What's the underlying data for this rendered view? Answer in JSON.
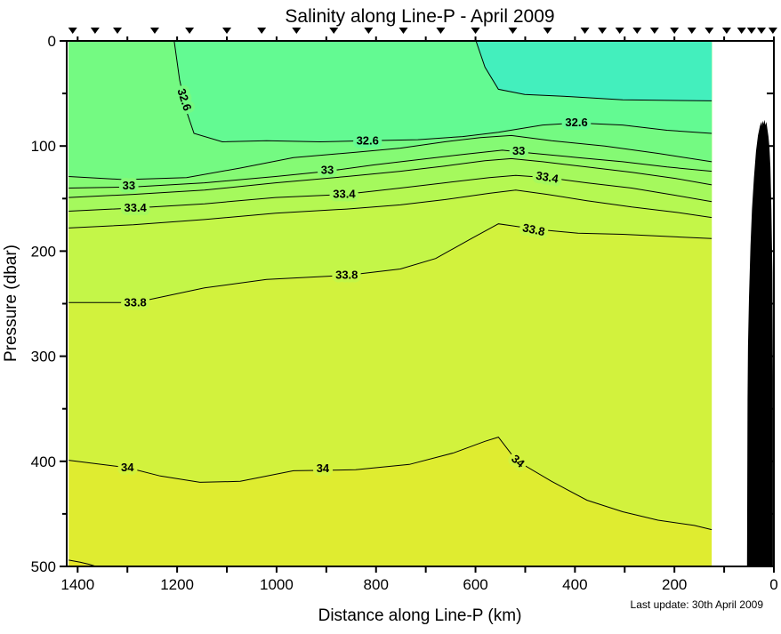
{
  "chart_data": {
    "type": "heatmap",
    "subtype": "filled-contour-section",
    "title": "Salinity along Line-P - April 2009",
    "xlabel": "Distance along Line-P (km)",
    "ylabel": "Pressure (dbar)",
    "note": "Last update: 30th April 2009",
    "x_range": [
      1422,
      0
    ],
    "y_range": [
      0,
      500
    ],
    "x_axis_reversed": true,
    "y_axis_down": true,
    "x_major_ticks": [
      1400,
      1200,
      1000,
      800,
      600,
      400,
      200,
      0
    ],
    "x_major_tick_labels": [
      "1400",
      "1200",
      "1000",
      "800",
      "600",
      "400",
      "200",
      "0"
    ],
    "x_minor_ticks": [
      1300,
      1100,
      900,
      700,
      500,
      300,
      100
    ],
    "y_major_ticks": [
      0,
      100,
      200,
      300,
      400,
      500
    ],
    "y_major_tick_labels": [
      "0",
      "100",
      "200",
      "300",
      "400",
      "500"
    ],
    "y_minor_ticks": [
      50,
      150,
      250,
      350,
      450
    ],
    "right_axis_ticks_dbar": [
      50,
      100,
      150,
      200,
      250,
      300,
      350,
      400,
      450
    ],
    "data_extent_km": [
      1418,
      125
    ],
    "contour_interval": 0.2,
    "labeled_levels": [
      32.6,
      33,
      33.4,
      33.8,
      34
    ],
    "station_markers_km": [
      1410,
      1365,
      1320,
      1245,
      1175,
      1100,
      1030,
      960,
      885,
      815,
      745,
      670,
      600,
      525,
      455,
      380,
      345,
      310,
      275,
      240,
      200,
      165,
      130,
      95,
      65,
      45,
      25,
      2
    ],
    "band_colors": [
      {
        "range": "<32.4",
        "color": "#43EFBD"
      },
      {
        "range": "32.4-32.6",
        "color": "#63FA92"
      },
      {
        "range": "32.6-32.8",
        "color": "#74FA82"
      },
      {
        "range": "32.8-33.0",
        "color": "#85FA74"
      },
      {
        "range": "33.0-33.2",
        "color": "#95FA68"
      },
      {
        "range": "33.2-33.4",
        "color": "#A5F95D"
      },
      {
        "range": "33.4-33.6",
        "color": "#B5F852"
      },
      {
        "range": "33.6-33.8",
        "color": "#C4F648"
      },
      {
        "range": "33.8-34.0",
        "color": "#D2F23D"
      },
      {
        "range": "34.0-34.2",
        "color": "#DFEC30"
      },
      {
        "range": ">34.2",
        "color": "#E7E628"
      }
    ],
    "contours": [
      {
        "level": 32.4,
        "points": [
          [
            599,
            0
          ],
          [
            581,
            25
          ],
          [
            554,
            46
          ],
          [
            501,
            51
          ],
          [
            411,
            53
          ],
          [
            304,
            56
          ],
          [
            125,
            57
          ]
        ]
      },
      {
        "level": 32.6,
        "points": [
          [
            1206,
            0
          ],
          [
            1195,
            37
          ],
          [
            1181,
            67
          ],
          [
            1166,
            88
          ],
          [
            1109,
            96
          ],
          [
            1020,
            95
          ],
          [
            912,
            96
          ],
          [
            817,
            95
          ],
          [
            716,
            94
          ],
          [
            626,
            91
          ],
          [
            554,
            87
          ],
          [
            465,
            80
          ],
          [
            397,
            78
          ],
          [
            304,
            80
          ],
          [
            215,
            85
          ],
          [
            125,
            88
          ]
        ]
      },
      {
        "level": 32.8,
        "points": [
          [
            1418,
            129
          ],
          [
            1306,
            132
          ],
          [
            1181,
            130
          ],
          [
            1073,
            121
          ],
          [
            966,
            111
          ],
          [
            841,
            106
          ],
          [
            751,
            102
          ],
          [
            662,
            96
          ],
          [
            590,
            92
          ],
          [
            528,
            90
          ],
          [
            447,
            95
          ],
          [
            340,
            100
          ],
          [
            233,
            107
          ],
          [
            125,
            115
          ]
        ]
      },
      {
        "level": 33.0,
        "points": [
          [
            1418,
            140
          ],
          [
            1288,
            139
          ],
          [
            1145,
            135
          ],
          [
            1002,
            129
          ],
          [
            898,
            124
          ],
          [
            805,
            118
          ],
          [
            716,
            113
          ],
          [
            626,
            108
          ],
          [
            546,
            104
          ],
          [
            483,
            107
          ],
          [
            394,
            111
          ],
          [
            304,
            115
          ],
          [
            215,
            120
          ],
          [
            125,
            124
          ]
        ]
      },
      {
        "level": 33.2,
        "points": [
          [
            1418,
            149
          ],
          [
            1288,
            146
          ],
          [
            1145,
            142
          ],
          [
            1002,
            135
          ],
          [
            859,
            129
          ],
          [
            751,
            124
          ],
          [
            662,
            119
          ],
          [
            581,
            114
          ],
          [
            528,
            112
          ],
          [
            465,
            115
          ],
          [
            376,
            120
          ],
          [
            286,
            125
          ],
          [
            197,
            131
          ],
          [
            125,
            137
          ]
        ]
      },
      {
        "level": 33.4,
        "points": [
          [
            1418,
            162
          ],
          [
            1284,
            159
          ],
          [
            1145,
            155
          ],
          [
            1002,
            149
          ],
          [
            864,
            146
          ],
          [
            751,
            140
          ],
          [
            662,
            135
          ],
          [
            572,
            130
          ],
          [
            519,
            128
          ],
          [
            456,
            130
          ],
          [
            376,
            135
          ],
          [
            286,
            140
          ],
          [
            197,
            147
          ],
          [
            125,
            153
          ]
        ]
      },
      {
        "level": 33.6,
        "points": [
          [
            1418,
            178
          ],
          [
            1288,
            175
          ],
          [
            1145,
            170
          ],
          [
            1002,
            164
          ],
          [
            859,
            160
          ],
          [
            751,
            156
          ],
          [
            662,
            151
          ],
          [
            572,
            145
          ],
          [
            519,
            142
          ],
          [
            456,
            146
          ],
          [
            376,
            152
          ],
          [
            286,
            158
          ],
          [
            197,
            163
          ],
          [
            125,
            168
          ]
        ]
      },
      {
        "level": 33.8,
        "points": [
          [
            1418,
            249
          ],
          [
            1284,
            249
          ],
          [
            1145,
            235
          ],
          [
            1020,
            227
          ],
          [
            859,
            223
          ],
          [
            751,
            217
          ],
          [
            680,
            207
          ],
          [
            608,
            188
          ],
          [
            554,
            174
          ],
          [
            510,
            177
          ],
          [
            483,
            179
          ],
          [
            394,
            183
          ],
          [
            304,
            184
          ],
          [
            215,
            186
          ],
          [
            125,
            188
          ]
        ]
      },
      {
        "level": 34.0,
        "points": [
          [
            1418,
            399
          ],
          [
            1300,
            406
          ],
          [
            1234,
            414
          ],
          [
            1154,
            420
          ],
          [
            1073,
            419
          ],
          [
            966,
            409
          ],
          [
            841,
            408
          ],
          [
            733,
            403
          ],
          [
            644,
            392
          ],
          [
            581,
            381
          ],
          [
            554,
            377
          ],
          [
            528,
            393
          ],
          [
            501,
            404
          ],
          [
            447,
            419
          ],
          [
            376,
            437
          ],
          [
            304,
            448
          ],
          [
            233,
            456
          ],
          [
            160,
            461
          ],
          [
            125,
            465
          ]
        ]
      },
      {
        "level": 34.2,
        "fragment": true,
        "points": [
          [
            1418,
            494
          ],
          [
            1395,
            496
          ],
          [
            1377,
            498
          ],
          [
            1363,
            500
          ]
        ]
      }
    ],
    "contour_labels": [
      {
        "text": "32.6",
        "km": 1186,
        "dbar": 56,
        "rot": 72,
        "halo": "#74FA82"
      },
      {
        "text": "32.6",
        "km": 817,
        "dbar": 95,
        "rot": 0,
        "halo": "#63FA92"
      },
      {
        "text": "32.6",
        "km": 397,
        "dbar": 78,
        "rot": 0,
        "halo": "#63FA92"
      },
      {
        "text": "33",
        "km": 1297,
        "dbar": 138,
        "rot": 0,
        "halo": "#85FA74"
      },
      {
        "text": "33",
        "km": 898,
        "dbar": 123,
        "rot": 0,
        "halo": "#85FA74"
      },
      {
        "text": "33",
        "km": 513,
        "dbar": 105,
        "rot": 0,
        "halo": "#85FA74"
      },
      {
        "text": "33.4",
        "km": 1284,
        "dbar": 159,
        "rot": 0,
        "halo": "#A5F95D"
      },
      {
        "text": "33.4",
        "km": 864,
        "dbar": 146,
        "rot": 0,
        "halo": "#A5F95D"
      },
      {
        "text": "33.4",
        "km": 456,
        "dbar": 130,
        "rot": 10,
        "halo": "#A5F95D"
      },
      {
        "text": "33.8",
        "km": 1284,
        "dbar": 249,
        "rot": 0,
        "halo": "#C4F648"
      },
      {
        "text": "33.8",
        "km": 859,
        "dbar": 223,
        "rot": 0,
        "halo": "#C4F648"
      },
      {
        "text": "33.8",
        "km": 483,
        "dbar": 180,
        "rot": 12,
        "halo": "#C4F648"
      },
      {
        "text": "34",
        "km": 1300,
        "dbar": 406,
        "rot": 0,
        "halo": "#D2F23D"
      },
      {
        "text": "34",
        "km": 907,
        "dbar": 407,
        "rot": 0,
        "halo": "#D2F23D"
      },
      {
        "text": "34",
        "km": 515,
        "dbar": 400,
        "rot": 40,
        "halo": "#D2F23D"
      }
    ],
    "bathymetry_km_dbar": [
      [
        54,
        500
      ],
      [
        53,
        340
      ],
      [
        52,
        290
      ],
      [
        50,
        245
      ],
      [
        47,
        195
      ],
      [
        44,
        160
      ],
      [
        40,
        130
      ],
      [
        36,
        105
      ],
      [
        32,
        90
      ],
      [
        28,
        81
      ],
      [
        25,
        77
      ],
      [
        24,
        81
      ],
      [
        23,
        76
      ],
      [
        21,
        79
      ],
      [
        19,
        75
      ],
      [
        17,
        80
      ],
      [
        15,
        77
      ],
      [
        13,
        84
      ],
      [
        11,
        91
      ],
      [
        9,
        101
      ],
      [
        7,
        120
      ],
      [
        5,
        160
      ],
      [
        3,
        220
      ],
      [
        2,
        320
      ],
      [
        2,
        500
      ]
    ]
  }
}
